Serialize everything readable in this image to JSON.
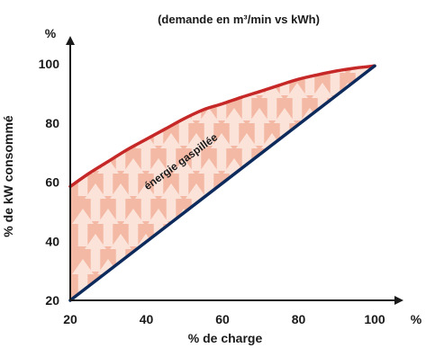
{
  "chart_data": {
    "type": "area",
    "title": "(demande en m³/min vs kWh)",
    "xlabel": "% de charge",
    "ylabel": "% de kW consommé",
    "x_unit": "%",
    "y_unit": "%",
    "xlim": [
      20,
      100
    ],
    "ylim": [
      20,
      100
    ],
    "x_ticks": [
      "20",
      "40",
      "60",
      "80",
      "100"
    ],
    "y_ticks": [
      "20",
      "40",
      "60",
      "80",
      "100"
    ],
    "annotation": "énergie gaspillée",
    "grid": false,
    "colors": {
      "upper_curve": "#c62828",
      "lower_line": "#0d2a5c",
      "fill": "#f3b9a4",
      "arrows": "#fbe3d9"
    },
    "series": [
      {
        "x": [
          20,
          25,
          30,
          35,
          40,
          45,
          50,
          55,
          60,
          65,
          70,
          75,
          80,
          85,
          90,
          95,
          100
        ],
        "y": [
          58.5,
          63,
          67,
          71,
          74.5,
          78,
          81.5,
          84.5,
          86.5,
          88.7,
          90.7,
          92.8,
          94.8,
          96.3,
          97.6,
          98.6,
          99.3
        ]
      },
      {
        "x": [
          20,
          100
        ],
        "y": [
          20,
          99.3
        ]
      }
    ]
  }
}
